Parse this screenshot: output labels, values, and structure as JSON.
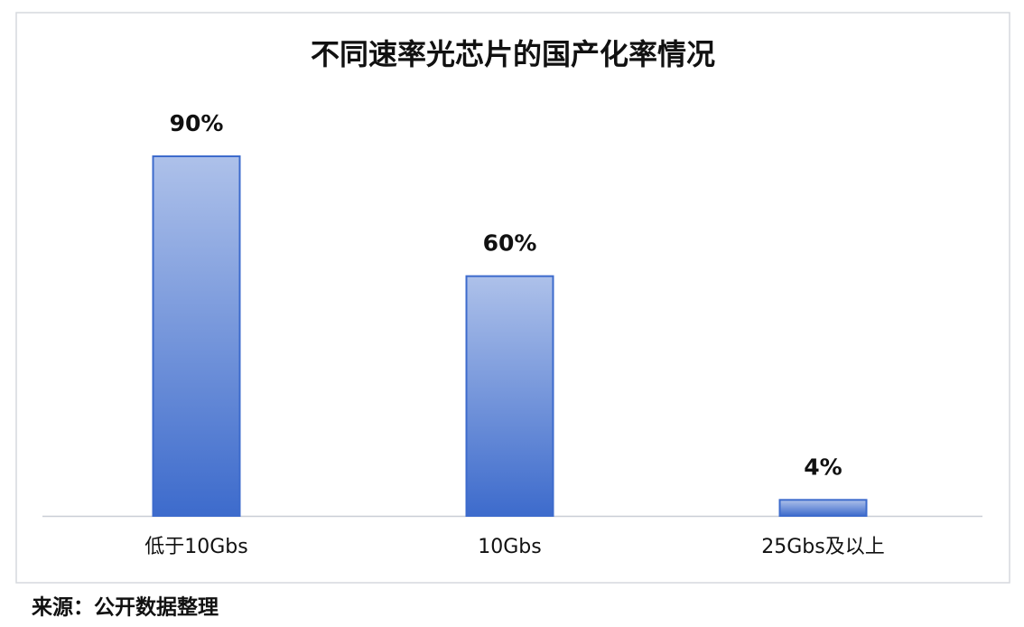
{
  "chart_data": {
    "type": "bar",
    "title": "不同速率光芯片的国产化率情况",
    "categories": [
      "低于10Gbs",
      "10Gbs",
      "25Gbs及以上"
    ],
    "values": [
      90,
      60,
      4
    ],
    "value_labels": [
      "90%",
      "60%",
      "4%"
    ],
    "color": "#3d6bcc",
    "source": "来源：公开数据整理"
  }
}
